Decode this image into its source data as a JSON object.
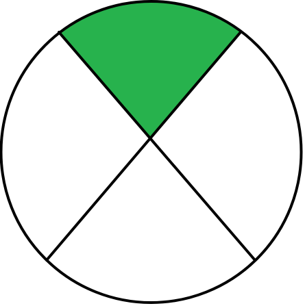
{
  "figure": {
    "type": "fraction-circle",
    "total_parts": 4,
    "shaded_parts": 1,
    "shaded_part_position": "top",
    "colors": {
      "background": "#ffffff",
      "outline": "#000000",
      "shaded": "#27b24d",
      "unshaded": "#ffffff"
    }
  }
}
